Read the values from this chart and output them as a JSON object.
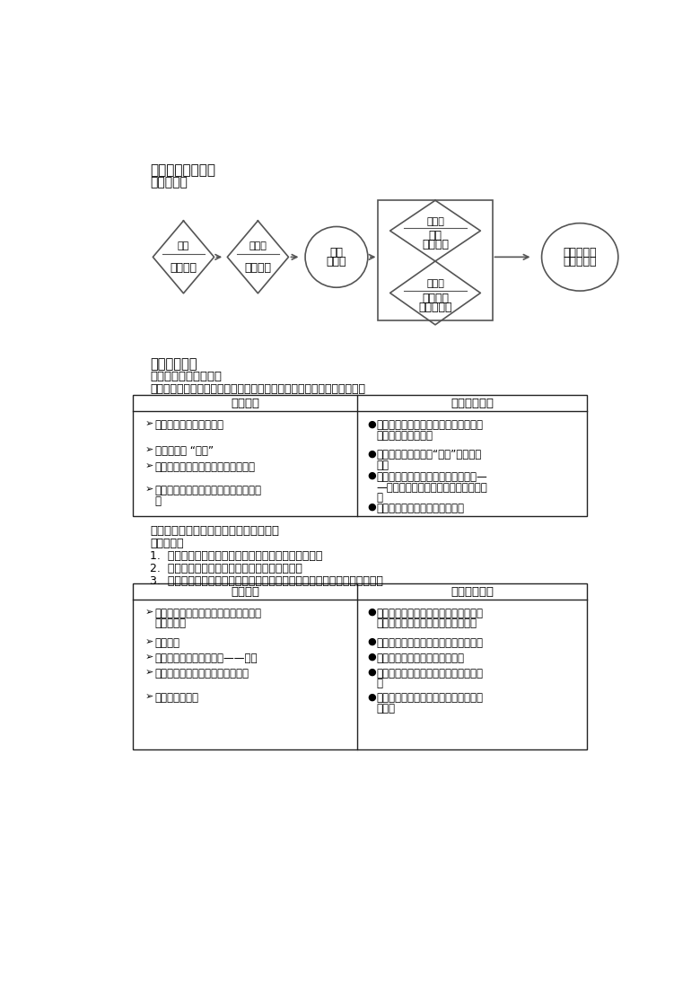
{
  "title_section": "六、教学内容组织",
  "subtitle_section": "『流程图』",
  "activity_design_title": "『活动设计』",
  "activity1_title": "活动一：寻找人体血管",
  "activity1_goal": "活动目标：通过生活经验及课堂体验活动，认识三种血管的种类及分布。",
  "activity2_title": "活动二：观察比较动脉与静脉的结构差异",
  "activity2_goals": [
    "活动目标：",
    "1.  通过对比观察动脉、静脉的结构，了解其结构特点。",
    "2.  通过阅读教材内容，了解动脉、静脉的功能。",
    "3.  通过分析动、静脉的功能差异，了解动、静脉的结构与功能是相适应的。"
  ],
  "table1_header": [
    "学生活动",
    "教师指导要点"
  ],
  "table1_col1": [
    "读图分析：血管的分布广",
    "寻找手背的 “青筋”",
    "通过手指按压感受脉掃跳动认识动脉",
    "通过生活中常见的手指验血认识毛细血管"
  ],
  "table1_col2": [
    "引导说明血管遍布全身，根据结构与功能特点分为三种类型",
    "确定这些被人们称为“青筋”的结构是静脉",
    "跳动的是人体中隐藏着的另一种血管——动脉，指出动脉一般分布在身体较深处",
    "说明遍布全身的血管是毛细血管"
  ],
  "table2_header": [
    "学生活动",
    "教师指导要点"
  ],
  "table2_col1": [
    "小组合作观察寻找动脉、静脉的结构差异，并记录",
    "学生交流",
    "读图发现静脉的特殊结构——瓣膜",
    "阅读教材，找到动脉、静脉的功能",
    "辨别血管的种类"
  ],
  "table2_col2": [
    "指导学生观察：目测管壁差异，并使用两把镞子扯动拉一拉感受血管的特点",
    "归纳结构特点（管壁厚薄，弹性大小）",
    "图示静脉中瓣膜可防止血液倒流",
    "指导学生阅读教材寻找动脉、静脉的功能",
    "引导学生根据血管的结构与功能辨别血管种类"
  ],
  "bg_color": "#ffffff",
  "text_color": "#000000",
  "line_color": "#555555"
}
